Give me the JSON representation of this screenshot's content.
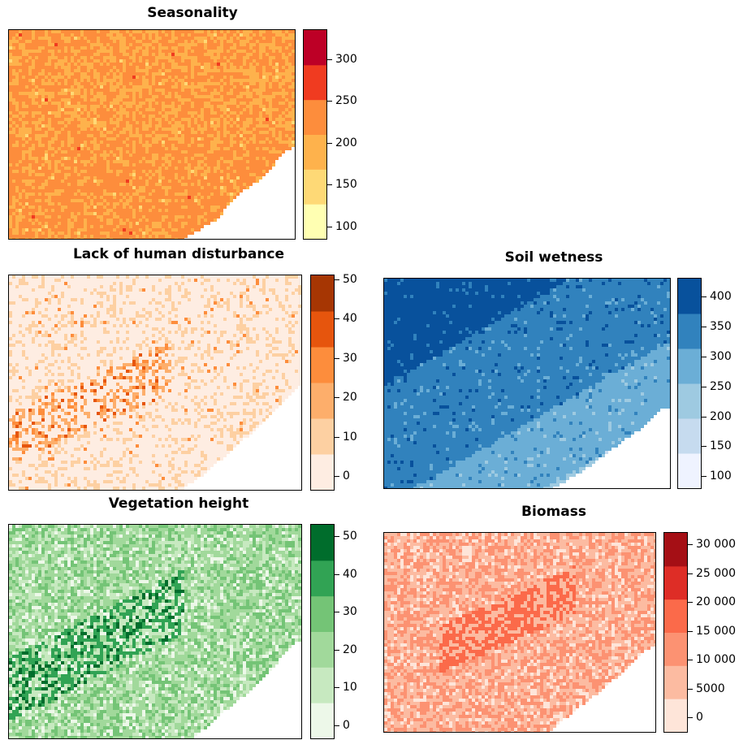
{
  "panels": [
    {
      "id": "seasonality",
      "title": "Seasonality",
      "colors": [
        "#ffffb2",
        "#fed976",
        "#feb24c",
        "#fd8d3c",
        "#f03b20",
        "#bd0026"
      ],
      "ticks": [
        "100",
        "150",
        "200",
        "250",
        "300"
      ],
      "range": [
        85,
        335
      ],
      "tick_values": [
        100,
        150,
        200,
        250,
        300
      ],
      "base_class": 2,
      "alt_class": 3
    },
    {
      "id": "human",
      "title": "Lack of human disturbance",
      "colors": [
        "#feede2",
        "#fdd0a2",
        "#fdae6b",
        "#fd8d3c",
        "#e6550d",
        "#a63603"
      ],
      "ticks": [
        "0",
        "10",
        "20",
        "30",
        "40",
        "50"
      ],
      "range": [
        -3.5,
        51
      ],
      "tick_values": [
        0,
        10,
        20,
        30,
        40,
        50
      ],
      "base_class": 0,
      "alt_class": 1
    },
    {
      "id": "soil",
      "title": "Soil wetness",
      "colors": [
        "#eff3ff",
        "#c6dbef",
        "#9ecae1",
        "#6baed6",
        "#3182bd",
        "#08519c"
      ],
      "ticks": [
        "100",
        "150",
        "200",
        "250",
        "300",
        "350",
        "400"
      ],
      "range": [
        80,
        430
      ],
      "tick_values": [
        100,
        150,
        200,
        250,
        300,
        350,
        400
      ],
      "base_class": 4,
      "alt_class": 3
    },
    {
      "id": "vegetation",
      "title": "Vegetation height",
      "colors": [
        "#edf8e9",
        "#c7e9c0",
        "#a1d99b",
        "#74c476",
        "#31a354",
        "#006d2c"
      ],
      "ticks": [
        "0",
        "10",
        "20",
        "30",
        "40",
        "50"
      ],
      "range": [
        -3.5,
        53
      ],
      "tick_values": [
        0,
        10,
        20,
        30,
        40,
        50
      ],
      "base_class": 2,
      "alt_class": 1
    },
    {
      "id": "biomass",
      "title": "Biomass",
      "colors": [
        "#fee5d9",
        "#fcbba1",
        "#fc9272",
        "#fb6a4a",
        "#de2d26",
        "#a50f15"
      ],
      "ticks": [
        "0",
        "5000",
        "10 000",
        "15 000",
        "20 000",
        "25 000",
        "30 000"
      ],
      "range": [
        -2500,
        32000
      ],
      "tick_values": [
        0,
        5000,
        10000,
        15000,
        20000,
        25000,
        30000
      ],
      "base_class": 1,
      "alt_class": 2
    }
  ]
}
